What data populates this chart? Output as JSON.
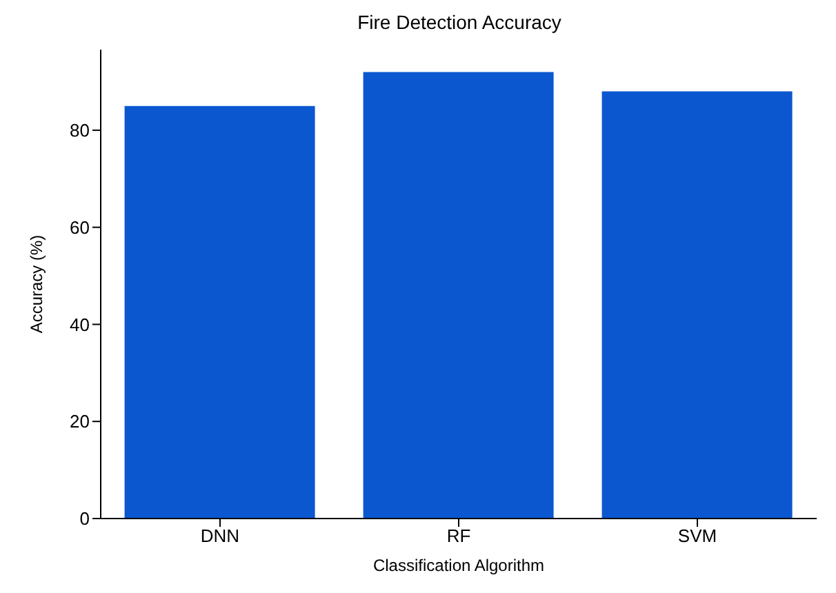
{
  "chart_data": {
    "type": "bar",
    "title": "Fire Detection Accuracy",
    "xlabel": "Classification Algorithm",
    "ylabel": "Accuracy (%)",
    "categories": [
      "DNN",
      "RF",
      "SVM"
    ],
    "values": [
      85,
      92,
      88
    ],
    "color": "#0b57d0",
    "ylim": [
      0,
      96.6
    ],
    "yticks": [
      0,
      20,
      40,
      60,
      80
    ],
    "grid": false,
    "legend": false
  }
}
